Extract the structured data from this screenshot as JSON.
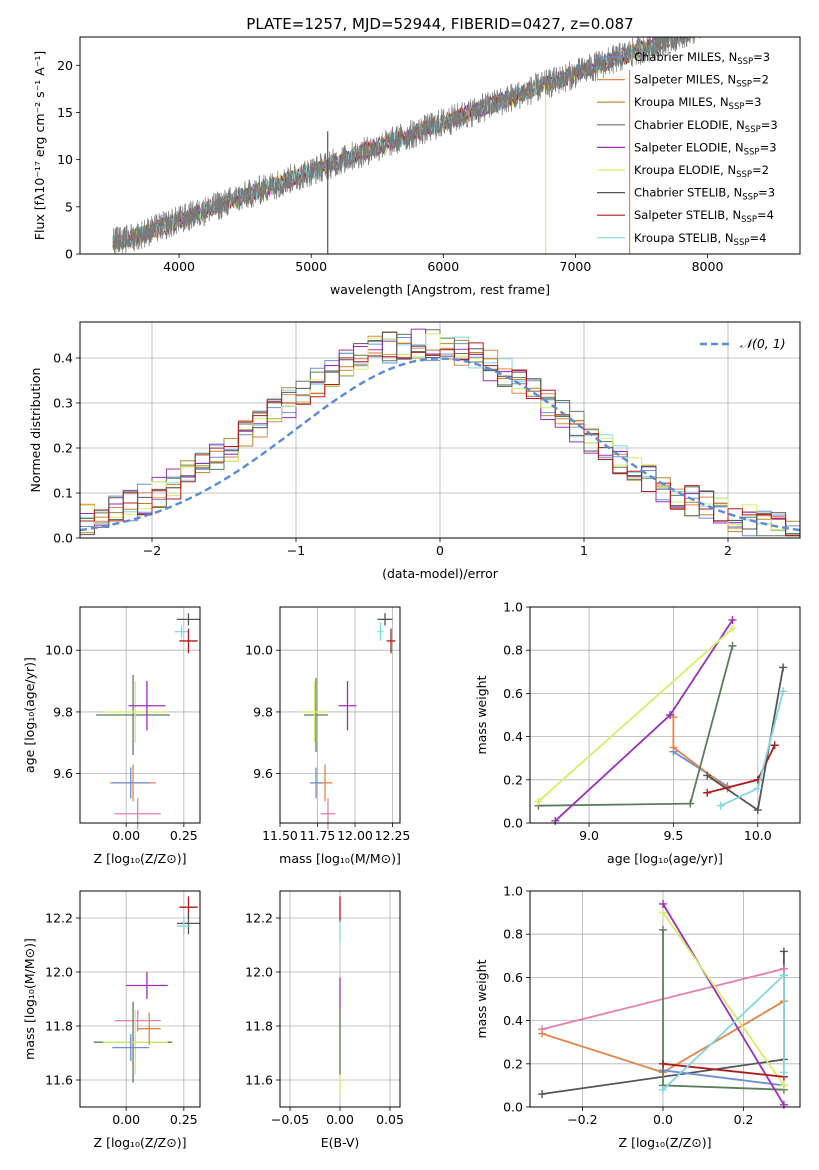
{
  "figure": {
    "title": "PLATE=1257, MJD=52944, FIBERID=0427, z=0.087"
  },
  "colors": {
    "Chabrier MILES": "#6b8fd6",
    "Salpeter MILES": "#e2854a",
    "Kroupa MILES": "#b7872c",
    "Chabrier ELODIE": "#5c7d5c",
    "Salpeter ELODIE": "#9b30b8",
    "Kroupa ELODIE": "#d8ec6a",
    "Chabrier STELIB": "#555555",
    "Salpeter STELIB": "#b01c1c",
    "Kroupa STELIB": "#82d8e2",
    "Pink": "#e27fb4"
  },
  "chart_data": [
    {
      "id": "spectrum",
      "type": "line",
      "xlabel": "wavelength [Angstrom, rest frame]",
      "ylabel": "Flux [fλ10⁻¹⁷ erg cm⁻² s⁻¹ A⁻¹]",
      "xlim": [
        3250,
        8700
      ],
      "ylim": [
        0,
        23
      ],
      "xticks": [
        4000,
        5000,
        6000,
        7000,
        8000
      ],
      "yticks": [
        0,
        5,
        10,
        15,
        20
      ],
      "legend": [
        {
          "name": "Chabrier MILES",
          "sub": "SSP",
          "n": "3"
        },
        {
          "name": "Salpeter MILES",
          "sub": "SSP",
          "n": "2"
        },
        {
          "name": "Kroupa MILES",
          "sub": "SSP",
          "n": "3"
        },
        {
          "name": "Chabrier ELODIE",
          "sub": "SSP",
          "n": "3"
        },
        {
          "name": "Salpeter ELODIE",
          "sub": "SSP",
          "n": "3"
        },
        {
          "name": "Kroupa ELODIE",
          "sub": "SSP",
          "n": "2"
        },
        {
          "name": "Chabrier STELIB",
          "sub": "SSP",
          "n": "3"
        },
        {
          "name": "Salpeter STELIB",
          "sub": "SSP",
          "n": "4"
        },
        {
          "name": "Kroupa STELIB",
          "sub": "SSP",
          "n": "4"
        }
      ],
      "data_range": [
        3500,
        7950
      ],
      "spikes": [
        {
          "x": 5125,
          "y0": 0,
          "y1": 13.0,
          "color": "#555555"
        },
        {
          "x": 6775,
          "y0": 0,
          "y1": 17.0,
          "color": "#d8ec6a"
        },
        {
          "x": 7410,
          "y0": 0,
          "y1": 19.5,
          "color": "#e2854a"
        }
      ]
    },
    {
      "id": "residuals",
      "type": "histogram",
      "xlabel": "(data-model)/error",
      "ylabel": "Normed distribution",
      "xlim": [
        -2.5,
        2.5
      ],
      "ylim": [
        0,
        0.48
      ],
      "xticks": [
        -2,
        -1,
        0,
        1,
        2
      ],
      "yticks": [
        0.0,
        0.1,
        0.2,
        0.3,
        0.4
      ],
      "legend_label": "𝒩(0, 1)",
      "bin_width": 0.1
    },
    {
      "id": "age-vs-Z",
      "type": "errorbar",
      "xlabel": "Z [log₁₀(Z/Z⊙)]",
      "ylabel": "age  [log₁₀(age/yr)]",
      "xlim": [
        -0.2,
        0.32
      ],
      "ylim": [
        9.44,
        10.14
      ],
      "xticks": [
        0.0,
        0.25
      ],
      "xtick_labels": [
        "0.00",
        "0.25"
      ],
      "yticks": [
        9.6,
        9.8,
        10.0
      ],
      "ytick_labels": [
        "9.6",
        "9.8",
        "10.0"
      ],
      "points": [
        {
          "series": "Chabrier STELIB",
          "x": 0.27,
          "y": 10.1,
          "xerr": 0.05,
          "yerr": 0.02
        },
        {
          "series": "Kroupa STELIB",
          "x": 0.24,
          "y": 10.06,
          "xerr": 0.03,
          "yerr": 0.02
        },
        {
          "series": "Salpeter STELIB",
          "x": 0.27,
          "y": 10.03,
          "xerr": 0.04,
          "yerr": 0.04
        },
        {
          "series": "Chabrier ELODIE",
          "x": 0.03,
          "y": 9.79,
          "xerr": 0.16,
          "yerr": 0.13
        },
        {
          "series": "Kroupa ELODIE",
          "x": 0.04,
          "y": 9.8,
          "xerr": 0.14,
          "yerr": 0.1
        },
        {
          "series": "Salpeter ELODIE",
          "x": 0.09,
          "y": 9.82,
          "xerr": 0.08,
          "yerr": 0.08
        },
        {
          "series": "Salpeter MILES",
          "x": 0.03,
          "y": 9.57,
          "xerr": 0.1,
          "yerr": 0.06
        },
        {
          "series": "Chabrier MILES",
          "x": 0.02,
          "y": 9.57,
          "xerr": 0.08,
          "yerr": 0.05
        },
        {
          "series": "Pink",
          "x": 0.05,
          "y": 9.47,
          "xerr": 0.1,
          "yerr": 0.05
        }
      ]
    },
    {
      "id": "age-vs-mass",
      "type": "errorbar",
      "xlabel": "mass [log₁₀(M/M⊙)]",
      "ylabel": "",
      "xlim": [
        11.5,
        12.3
      ],
      "ylim": [
        9.44,
        10.14
      ],
      "xticks": [
        11.5,
        11.75,
        12.0,
        12.25
      ],
      "xtick_labels": [
        "11.50",
        "11.75",
        "12.00",
        "12.25"
      ],
      "yticks": [
        9.6,
        9.8,
        10.0
      ],
      "ytick_labels": [
        "9.6",
        "9.8",
        "10.0"
      ],
      "points": [
        {
          "series": "Chabrier STELIB",
          "x": 12.2,
          "y": 10.1,
          "xerr": 0.05,
          "yerr": 0.02
        },
        {
          "series": "Kroupa STELIB",
          "x": 12.17,
          "y": 10.06,
          "xerr": 0.02,
          "yerr": 0.03
        },
        {
          "series": "Salpeter STELIB",
          "x": 12.24,
          "y": 10.03,
          "xerr": 0.03,
          "yerr": 0.04
        },
        {
          "series": "Chabrier ELODIE",
          "x": 11.74,
          "y": 9.79,
          "xerr": 0.08,
          "yerr": 0.12
        },
        {
          "series": "Kroupa ELODIE",
          "x": 11.73,
          "y": 9.8,
          "xerr": 0.09,
          "yerr": 0.1
        },
        {
          "series": "Salpeter ELODIE",
          "x": 11.95,
          "y": 9.82,
          "xerr": 0.06,
          "yerr": 0.08
        },
        {
          "series": "Salpeter MILES",
          "x": 11.8,
          "y": 9.57,
          "xerr": 0.05,
          "yerr": 0.06
        },
        {
          "series": "Chabrier MILES",
          "x": 11.74,
          "y": 9.57,
          "xerr": 0.04,
          "yerr": 0.05
        },
        {
          "series": "Pink",
          "x": 11.82,
          "y": 9.47,
          "xerr": 0.05,
          "yerr": 0.05
        }
      ]
    },
    {
      "id": "weight-vs-age",
      "type": "line",
      "xlabel": "age  [log₁₀(age/yr)]",
      "ylabel": "mass weight",
      "xlim": [
        8.65,
        10.25
      ],
      "ylim": [
        0,
        1.0
      ],
      "xticks": [
        9.0,
        9.5,
        10.0
      ],
      "xtick_labels": [
        "9.0",
        "9.5",
        "10.0"
      ],
      "yticks": [
        0.0,
        0.2,
        0.4,
        0.6,
        0.8,
        1.0
      ],
      "ytick_labels": [
        "0.0",
        "0.2",
        "0.4",
        "0.6",
        "0.8",
        "1.0"
      ],
      "series": [
        {
          "name": "Chabrier MILES",
          "points": [
            [
              9.5,
              0.33
            ],
            [
              9.82,
              0.17
            ]
          ]
        },
        {
          "name": "Salpeter MILES",
          "points": [
            [
              9.5,
              0.49
            ],
            [
              9.5,
              0.35
            ],
            [
              9.82,
              0.16
            ]
          ]
        },
        {
          "name": "Chabrier ELODIE",
          "points": [
            [
              8.7,
              0.08
            ],
            [
              9.6,
              0.09
            ],
            [
              9.85,
              0.82
            ]
          ]
        },
        {
          "name": "Salpeter ELODIE",
          "points": [
            [
              8.8,
              0.01
            ],
            [
              9.48,
              0.5
            ],
            [
              9.85,
              0.94
            ]
          ]
        },
        {
          "name": "Kroupa ELODIE",
          "points": [
            [
              8.7,
              0.1
            ],
            [
              9.85,
              0.9
            ]
          ]
        },
        {
          "name": "Chabrier STELIB",
          "points": [
            [
              9.7,
              0.22
            ],
            [
              10.0,
              0.06
            ],
            [
              10.15,
              0.72
            ]
          ]
        },
        {
          "name": "Salpeter STELIB",
          "points": [
            [
              9.7,
              0.14
            ],
            [
              10.0,
              0.2
            ],
            [
              10.1,
              0.36
            ]
          ]
        },
        {
          "name": "Kroupa STELIB",
          "points": [
            [
              9.78,
              0.08
            ],
            [
              10.0,
              0.16
            ],
            [
              10.15,
              0.61
            ]
          ]
        }
      ]
    },
    {
      "id": "mass-vs-Z",
      "type": "errorbar",
      "xlabel": "Z [log₁₀(Z/Z⊙)]",
      "ylabel": "mass [log₁₀(M/M⊙)]",
      "xlim": [
        -0.2,
        0.32
      ],
      "ylim": [
        11.5,
        12.3
      ],
      "xticks": [
        0.0,
        0.25
      ],
      "xtick_labels": [
        "0.00",
        "0.25"
      ],
      "yticks": [
        11.6,
        11.8,
        12.0,
        12.2
      ],
      "ytick_labels": [
        "11.6",
        "11.8",
        "12.0",
        "12.2"
      ],
      "points": [
        {
          "series": "Salpeter STELIB",
          "x": 0.27,
          "y": 12.24,
          "xerr": 0.04,
          "yerr": 0.04
        },
        {
          "series": "Chabrier STELIB",
          "x": 0.27,
          "y": 12.18,
          "xerr": 0.05,
          "yerr": 0.04
        },
        {
          "series": "Kroupa STELIB",
          "x": 0.25,
          "y": 12.17,
          "xerr": 0.03,
          "yerr": 0.03
        },
        {
          "series": "Salpeter ELODIE",
          "x": 0.09,
          "y": 11.95,
          "xerr": 0.09,
          "yerr": 0.05
        },
        {
          "series": "Pink",
          "x": 0.05,
          "y": 11.82,
          "xerr": 0.1,
          "yerr": 0.04
        },
        {
          "series": "Chabrier ELODIE",
          "x": 0.03,
          "y": 11.74,
          "xerr": 0.17,
          "yerr": 0.15
        },
        {
          "series": "Kroupa ELODIE",
          "x": 0.04,
          "y": 11.74,
          "xerr": 0.14,
          "yerr": 0.12
        },
        {
          "series": "Salpeter MILES",
          "x": 0.1,
          "y": 11.79,
          "xerr": 0.05,
          "yerr": 0.06
        },
        {
          "series": "Chabrier MILES",
          "x": 0.02,
          "y": 11.72,
          "xerr": 0.08,
          "yerr": 0.05
        }
      ]
    },
    {
      "id": "mass-vs-EBV",
      "type": "errorbar",
      "xlabel": "E(B-V)",
      "ylabel": "",
      "xlim": [
        -0.06,
        0.06
      ],
      "ylim": [
        11.5,
        12.3
      ],
      "xticks": [
        -0.05,
        0.0,
        0.05
      ],
      "xtick_labels": [
        "−0.05",
        "0.00",
        "0.05"
      ],
      "yticks": [
        11.6,
        11.8,
        12.0,
        12.2
      ],
      "ytick_labels": [
        "11.6",
        "11.8",
        "12.0",
        "12.2"
      ],
      "points": [
        {
          "series": "Salpeter STELIB",
          "x": 0.0,
          "y": 12.23,
          "xerr": 0.0,
          "yerr": 0.05
        },
        {
          "series": "Kroupa STELIB",
          "x": 0.0,
          "y": 12.15,
          "xerr": 0.0,
          "yerr": 0.04
        },
        {
          "series": "Salpeter ELODIE",
          "x": 0.0,
          "y": 11.92,
          "xerr": 0.0,
          "yerr": 0.06
        },
        {
          "series": "Kroupa ELODIE",
          "x": 0.0,
          "y": 11.7,
          "xerr": 0.0,
          "yerr": 0.15
        },
        {
          "series": "Chabrier ELODIE",
          "x": 0.0,
          "y": 11.74,
          "xerr": 0.0,
          "yerr": 0.12
        }
      ]
    },
    {
      "id": "weight-vs-Z",
      "type": "line",
      "xlabel": "Z [log₁₀(Z/Z⊙)]",
      "ylabel": "mass weight",
      "xlim": [
        -0.33,
        0.34
      ],
      "ylim": [
        0,
        1.0
      ],
      "xticks": [
        -0.2,
        0.0,
        0.2
      ],
      "xtick_labels": [
        "−0.2",
        "0.0",
        "0.2"
      ],
      "yticks": [
        0.0,
        0.2,
        0.4,
        0.6,
        0.8,
        1.0
      ],
      "ytick_labels": [
        "0.0",
        "0.2",
        "0.4",
        "0.6",
        "0.8",
        "1.0"
      ],
      "series": [
        {
          "name": "Chabrier STELIB",
          "points": [
            [
              -0.3,
              0.06
            ],
            [
              0.3,
              0.22
            ],
            [
              0.3,
              0.72
            ]
          ]
        },
        {
          "name": "Pink",
          "points": [
            [
              -0.3,
              0.36
            ],
            [
              0.3,
              0.64
            ]
          ]
        },
        {
          "name": "Salpeter MILES",
          "points": [
            [
              -0.3,
              0.34
            ],
            [
              0.0,
              0.16
            ],
            [
              0.3,
              0.49
            ]
          ]
        },
        {
          "name": "Chabrier MILES",
          "points": [
            [
              0.0,
              0.17
            ],
            [
              0.3,
              0.1
            ]
          ]
        },
        {
          "name": "Chabrier ELODIE",
          "points": [
            [
              0.0,
              0.82
            ],
            [
              0.0,
              0.1
            ],
            [
              0.3,
              0.08
            ]
          ]
        },
        {
          "name": "Salpeter ELODIE",
          "points": [
            [
              0.0,
              0.94
            ],
            [
              0.3,
              0.01
            ]
          ]
        },
        {
          "name": "Kroupa ELODIE",
          "points": [
            [
              0.0,
              0.9
            ],
            [
              0.3,
              0.1
            ]
          ]
        },
        {
          "name": "Salpeter STELIB",
          "points": [
            [
              0.0,
              0.2
            ],
            [
              0.3,
              0.14
            ]
          ]
        },
        {
          "name": "Kroupa STELIB",
          "points": [
            [
              0.0,
              0.08
            ],
            [
              0.3,
              0.61
            ],
            [
              0.3,
              0.16
            ]
          ]
        }
      ]
    }
  ]
}
